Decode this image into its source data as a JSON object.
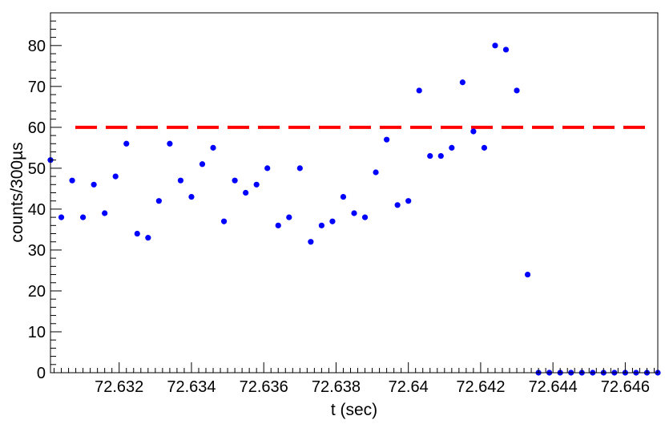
{
  "chart_data": {
    "type": "scatter",
    "title": "",
    "xlabel": "t (sec)",
    "ylabel": "counts/300µs",
    "xlim": [
      72.6301,
      72.6469
    ],
    "ylim": [
      0,
      88
    ],
    "x_ticks": [
      72.632,
      72.634,
      72.636,
      72.638,
      72.64,
      72.642,
      72.644,
      72.646
    ],
    "x_tick_labels": [
      "72.632",
      "72.634",
      "72.636",
      "72.638",
      "72.64",
      "72.642",
      "72.644",
      "72.646"
    ],
    "y_ticks": [
      0,
      10,
      20,
      30,
      40,
      50,
      60,
      70,
      80
    ],
    "y_tick_labels": [
      "0",
      "10",
      "20",
      "30",
      "40",
      "50",
      "60",
      "70",
      "80"
    ],
    "grid": false,
    "threshold": {
      "y": 60,
      "color": "#ff0000",
      "style": "dashed"
    },
    "marker_color": "#0000ff",
    "series": [
      {
        "x": [
          72.6301,
          72.6304,
          72.6307,
          72.631,
          72.6313,
          72.6316,
          72.6319,
          72.6322,
          72.6325,
          72.6328,
          72.6331,
          72.6334,
          72.6337,
          72.634,
          72.6343,
          72.6346,
          72.6349,
          72.6352,
          72.6355,
          72.6358,
          72.6361,
          72.6364,
          72.6367,
          72.637,
          72.6373,
          72.6376,
          72.6379,
          72.6382,
          72.6385,
          72.6388,
          72.6391,
          72.6394,
          72.6397,
          72.64,
          72.6403,
          72.6406,
          72.6409,
          72.6412,
          72.6415,
          72.6418,
          72.6421,
          72.6424,
          72.6427,
          72.643,
          72.6433,
          72.6436,
          72.6439,
          72.6442,
          72.6445,
          72.6448,
          72.6451,
          72.6454,
          72.6457,
          72.646,
          72.6463,
          72.6466,
          72.6469
        ],
        "y": [
          52,
          38,
          47,
          38,
          46,
          39,
          48,
          56,
          34,
          33,
          42,
          56,
          47,
          43,
          51,
          55,
          37,
          47,
          44,
          46,
          50,
          36,
          38,
          50,
          32,
          36,
          37,
          43,
          39,
          38,
          49,
          57,
          41,
          42,
          69,
          53,
          53,
          55,
          71,
          59,
          55,
          80,
          79,
          69,
          24,
          0,
          0,
          0,
          0,
          0,
          0,
          0,
          0,
          0,
          0,
          0,
          0
        ]
      }
    ]
  }
}
